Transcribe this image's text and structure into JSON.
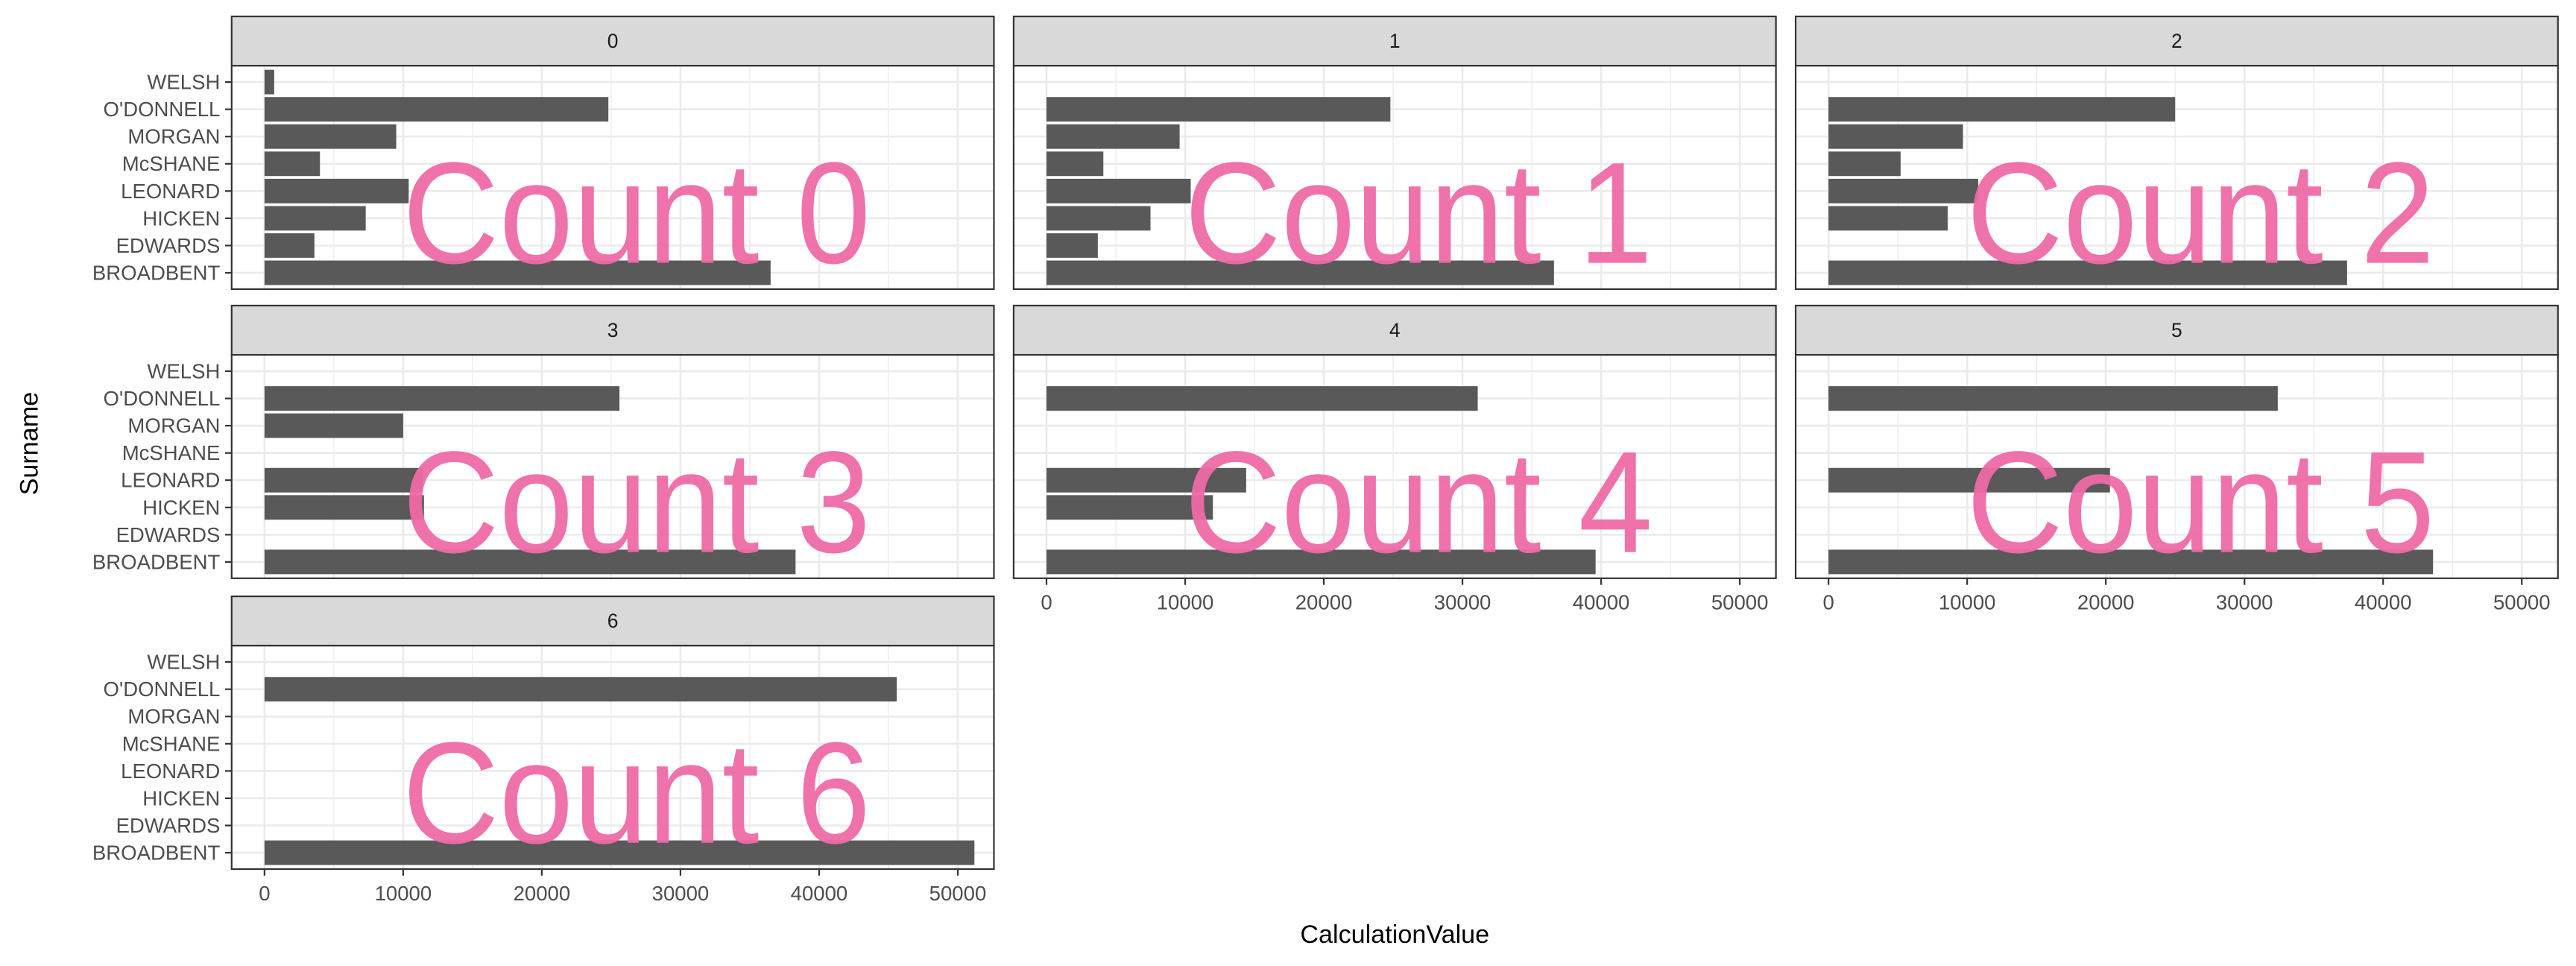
{
  "chart_data": {
    "type": "bar",
    "orientation": "horizontal",
    "facet_layout": "3 columns",
    "xlabel": "CalculationValue",
    "ylabel": "Surname",
    "xlim": [
      0,
      52000
    ],
    "x_ticks": [
      "0",
      "10000",
      "20000",
      "30000",
      "40000",
      "50000"
    ],
    "x_tick_values": [
      0,
      10000,
      20000,
      30000,
      40000,
      50000
    ],
    "categories": [
      "WELSH",
      "O'DONNELL",
      "MORGAN",
      "McSHANE",
      "LEONARD",
      "HICKEN",
      "EDWARDS",
      "BROADBENT"
    ],
    "grid": true,
    "bar_color": "#595959",
    "overlay_color": "#EE6AA7",
    "facets": [
      {
        "label": "0",
        "overlay": "Count 0",
        "values": {
          "WELSH": 700,
          "O'DONNELL": 24800,
          "MORGAN": 9500,
          "McSHANE": 4000,
          "LEONARD": 10400,
          "HICKEN": 7300,
          "EDWARDS": 3600,
          "BROADBENT": 36500
        }
      },
      {
        "label": "1",
        "overlay": "Count 1",
        "values": {
          "O'DONNELL": 24800,
          "MORGAN": 9600,
          "McSHANE": 4100,
          "LEONARD": 10400,
          "HICKEN": 7500,
          "EDWARDS": 3700,
          "BROADBENT": 36600
        }
      },
      {
        "label": "2",
        "overlay": "Count 2",
        "values": {
          "O'DONNELL": 25000,
          "MORGAN": 9700,
          "McSHANE": 5200,
          "LEONARD": 10800,
          "HICKEN": 8600,
          "BROADBENT": 37400
        }
      },
      {
        "label": "3",
        "overlay": "Count 3",
        "values": {
          "O'DONNELL": 25600,
          "MORGAN": 10000,
          "LEONARD": 11400,
          "HICKEN": 11500,
          "BROADBENT": 38300
        }
      },
      {
        "label": "4",
        "overlay": "Count 4",
        "values": {
          "O'DONNELL": 31100,
          "LEONARD": 14400,
          "HICKEN": 12000,
          "BROADBENT": 39600
        }
      },
      {
        "label": "5",
        "overlay": "Count 5",
        "values": {
          "O'DONNELL": 32400,
          "LEONARD": 20300,
          "BROADBENT": 43600
        }
      },
      {
        "label": "6",
        "overlay": "Count 6",
        "values": {
          "O'DONNELL": 45600,
          "BROADBENT": 51200
        }
      }
    ]
  }
}
